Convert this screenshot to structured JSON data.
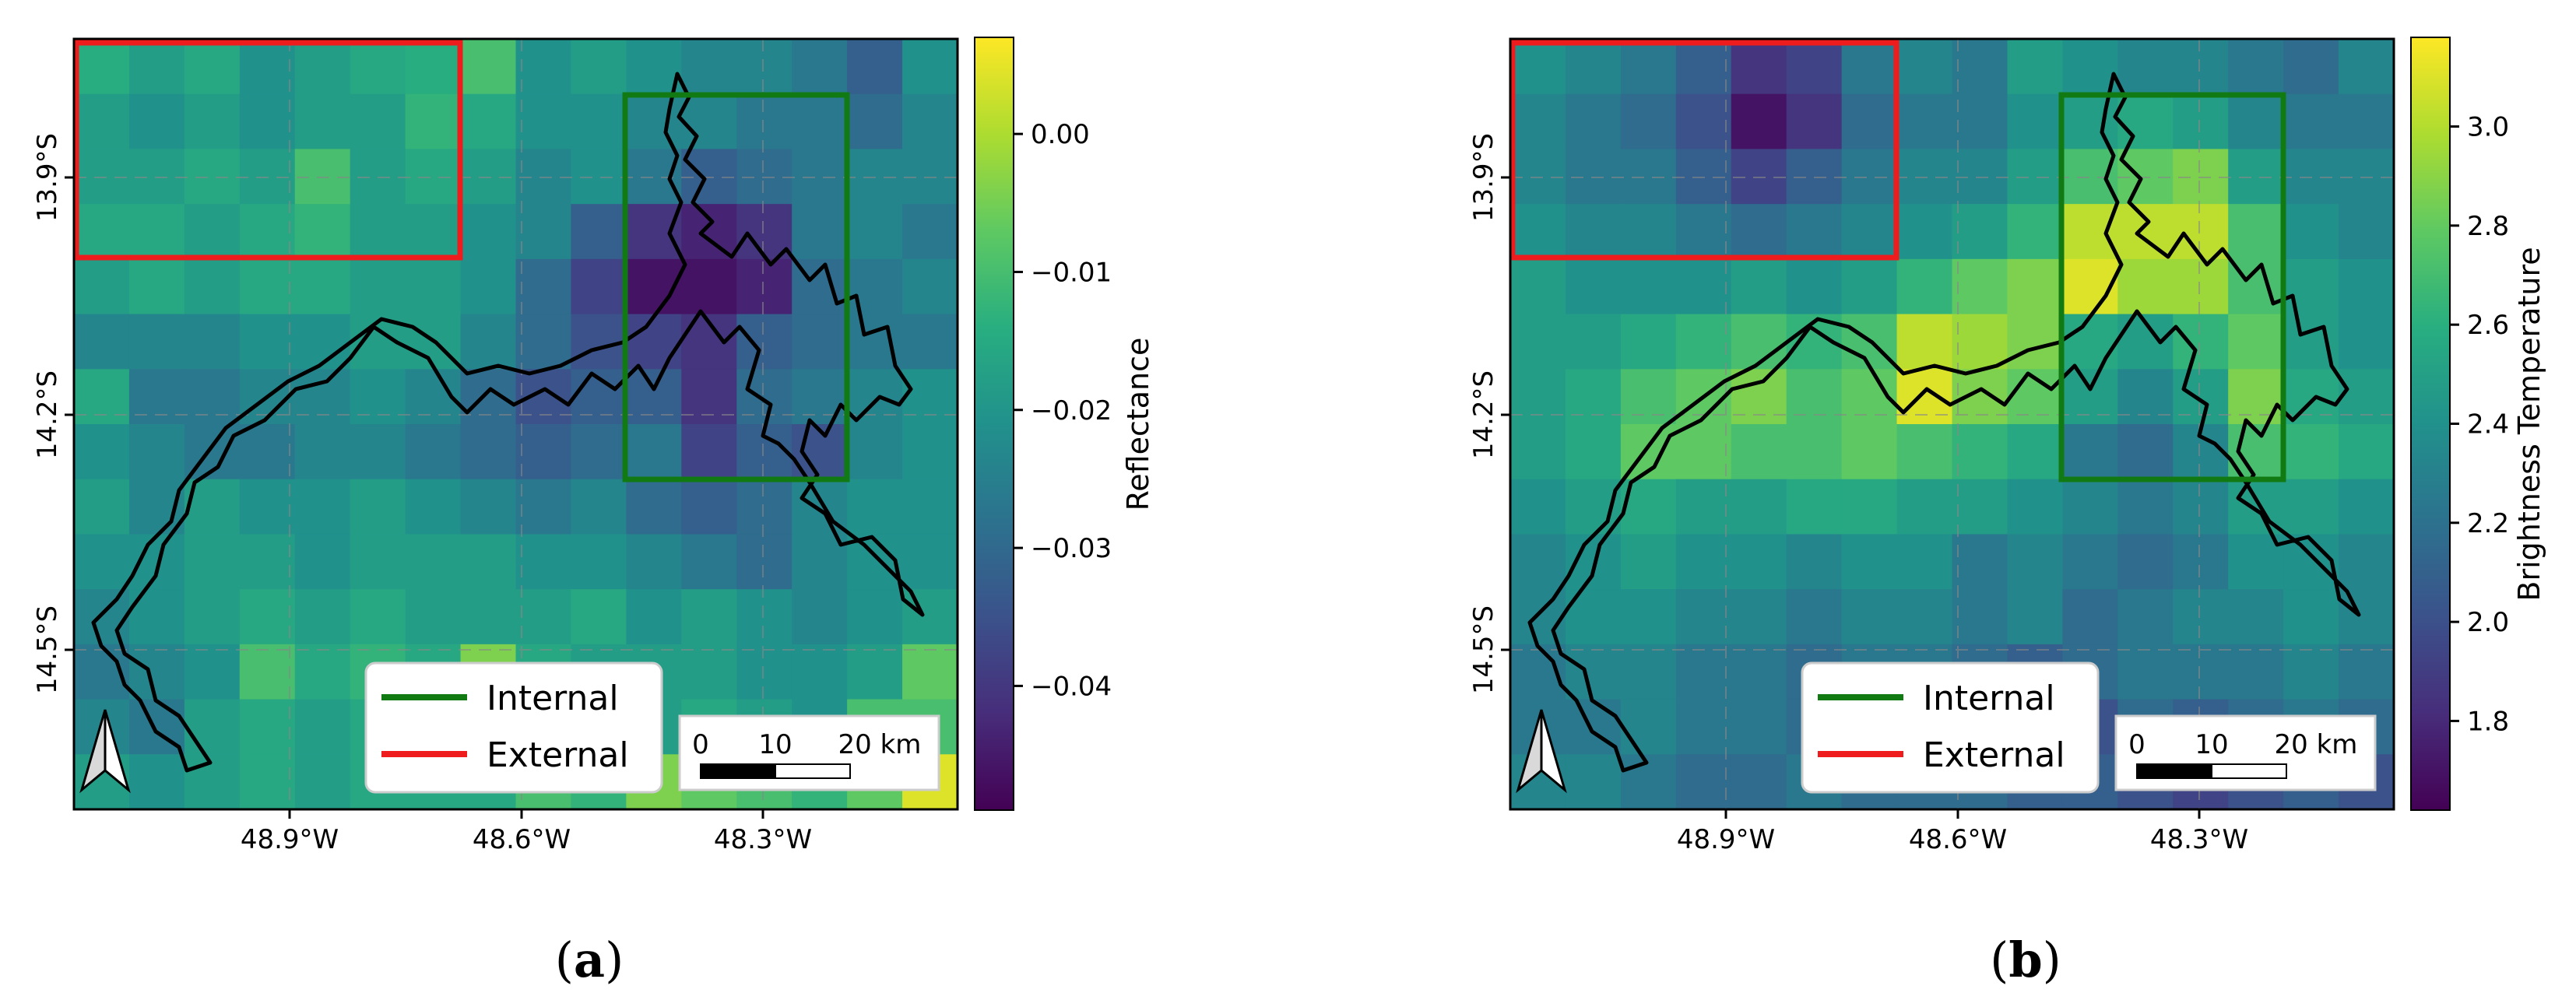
{
  "panels": [
    {
      "id": "a",
      "label_parts": [
        "(",
        "a",
        ")"
      ],
      "lon_ticks": [
        "48.9°W",
        "48.6°W",
        "48.3°W"
      ],
      "lat_ticks": [
        "13.9°S",
        "14.2°S",
        "14.5°S"
      ],
      "legend": {
        "internal": "Internal",
        "external": "External"
      },
      "scalebar": {
        "labels": [
          "0",
          "10",
          "20 km"
        ]
      },
      "colorbar": {
        "title": "Reflectance",
        "range": [
          -0.049,
          0.007
        ],
        "ticks": [
          "0.00",
          "−0.01",
          "−0.02",
          "−0.03",
          "−0.04"
        ],
        "tick_values": [
          0.0,
          -0.01,
          -0.02,
          -0.03,
          -0.04
        ]
      },
      "grid": {
        "rows": 14,
        "cols": 16,
        "values": [
          [
            0.62,
            0.55,
            0.6,
            0.5,
            0.55,
            0.6,
            0.62,
            0.7,
            0.5,
            0.55,
            0.5,
            0.45,
            0.45,
            0.4,
            0.3,
            0.5
          ],
          [
            0.55,
            0.5,
            0.55,
            0.5,
            0.55,
            0.55,
            0.65,
            0.6,
            0.5,
            0.5,
            0.45,
            0.45,
            0.4,
            0.4,
            0.35,
            0.45
          ],
          [
            0.55,
            0.55,
            0.6,
            0.55,
            0.7,
            0.55,
            0.6,
            0.55,
            0.45,
            0.5,
            0.4,
            0.3,
            0.35,
            0.4,
            0.45,
            0.45
          ],
          [
            0.6,
            0.6,
            0.55,
            0.6,
            0.65,
            0.55,
            0.55,
            0.5,
            0.45,
            0.3,
            0.15,
            0.1,
            0.15,
            0.4,
            0.45,
            0.4
          ],
          [
            0.55,
            0.6,
            0.55,
            0.6,
            0.6,
            0.55,
            0.55,
            0.5,
            0.35,
            0.2,
            0.05,
            0.05,
            0.1,
            0.35,
            0.4,
            0.45
          ],
          [
            0.45,
            0.45,
            0.45,
            0.5,
            0.5,
            0.55,
            0.55,
            0.45,
            0.35,
            0.25,
            0.2,
            0.15,
            0.3,
            0.35,
            0.4,
            0.4
          ],
          [
            0.6,
            0.4,
            0.4,
            0.45,
            0.45,
            0.5,
            0.45,
            0.35,
            0.25,
            0.3,
            0.3,
            0.15,
            0.35,
            0.4,
            0.45,
            0.5
          ],
          [
            0.5,
            0.45,
            0.4,
            0.4,
            0.45,
            0.45,
            0.4,
            0.35,
            0.3,
            0.35,
            0.4,
            0.2,
            0.3,
            0.25,
            0.45,
            0.5
          ],
          [
            0.55,
            0.45,
            0.55,
            0.5,
            0.5,
            0.55,
            0.5,
            0.45,
            0.4,
            0.45,
            0.35,
            0.3,
            0.35,
            0.45,
            0.5,
            0.5
          ],
          [
            0.5,
            0.5,
            0.55,
            0.55,
            0.5,
            0.55,
            0.55,
            0.55,
            0.5,
            0.5,
            0.45,
            0.4,
            0.35,
            0.45,
            0.5,
            0.5
          ],
          [
            0.45,
            0.5,
            0.55,
            0.6,
            0.55,
            0.6,
            0.55,
            0.55,
            0.55,
            0.6,
            0.5,
            0.55,
            0.5,
            0.45,
            0.5,
            0.55
          ],
          [
            0.4,
            0.45,
            0.5,
            0.7,
            0.6,
            0.65,
            0.6,
            0.8,
            0.6,
            0.55,
            0.55,
            0.55,
            0.5,
            0.5,
            0.55,
            0.75
          ],
          [
            0.45,
            0.4,
            0.55,
            0.6,
            0.55,
            0.6,
            0.6,
            0.55,
            0.6,
            0.6,
            0.55,
            0.6,
            0.55,
            0.5,
            0.7,
            0.7
          ],
          [
            0.55,
            0.5,
            0.55,
            0.6,
            0.55,
            0.6,
            0.6,
            0.6,
            0.7,
            0.65,
            0.8,
            0.75,
            0.7,
            0.65,
            0.75,
            0.95
          ]
        ]
      }
    },
    {
      "id": "b",
      "label_parts": [
        "(",
        "b",
        ")"
      ],
      "lon_ticks": [
        "48.9°W",
        "48.6°W",
        "48.3°W"
      ],
      "lat_ticks": [
        "13.9°S",
        "14.2°S",
        "14.5°S"
      ],
      "legend": {
        "internal": "Internal",
        "external": "External"
      },
      "scalebar": {
        "labels": [
          "0",
          "10",
          "20 km"
        ]
      },
      "colorbar": {
        "title": "Brightness Temperature",
        "range": [
          1.62,
          3.18
        ],
        "ticks": [
          "3.0",
          "2.8",
          "2.6",
          "2.4",
          "2.2",
          "2.0",
          "1.8"
        ],
        "tick_values": [
          3.0,
          2.8,
          2.6,
          2.4,
          2.2,
          2.0,
          1.8
        ]
      },
      "grid": {
        "rows": 14,
        "cols": 16,
        "values": [
          [
            0.5,
            0.45,
            0.4,
            0.3,
            0.15,
            0.2,
            0.4,
            0.45,
            0.4,
            0.55,
            0.5,
            0.45,
            0.45,
            0.4,
            0.35,
            0.45
          ],
          [
            0.45,
            0.4,
            0.35,
            0.25,
            0.05,
            0.15,
            0.35,
            0.4,
            0.4,
            0.5,
            0.55,
            0.6,
            0.55,
            0.45,
            0.4,
            0.4
          ],
          [
            0.45,
            0.4,
            0.4,
            0.3,
            0.2,
            0.3,
            0.4,
            0.45,
            0.45,
            0.55,
            0.7,
            0.75,
            0.8,
            0.55,
            0.45,
            0.45
          ],
          [
            0.5,
            0.45,
            0.45,
            0.4,
            0.35,
            0.4,
            0.45,
            0.5,
            0.55,
            0.65,
            0.9,
            0.9,
            0.9,
            0.7,
            0.5,
            0.45
          ],
          [
            0.55,
            0.5,
            0.5,
            0.5,
            0.55,
            0.5,
            0.55,
            0.65,
            0.75,
            0.8,
            0.95,
            0.85,
            0.85,
            0.7,
            0.55,
            0.5
          ],
          [
            0.55,
            0.55,
            0.6,
            0.65,
            0.7,
            0.65,
            0.7,
            0.9,
            0.85,
            0.8,
            0.6,
            0.55,
            0.65,
            0.75,
            0.55,
            0.5
          ],
          [
            0.55,
            0.6,
            0.7,
            0.75,
            0.8,
            0.7,
            0.75,
            0.95,
            0.8,
            0.75,
            0.55,
            0.45,
            0.55,
            0.8,
            0.6,
            0.55
          ],
          [
            0.55,
            0.6,
            0.75,
            0.75,
            0.7,
            0.7,
            0.75,
            0.7,
            0.65,
            0.6,
            0.4,
            0.35,
            0.45,
            0.7,
            0.65,
            0.6
          ],
          [
            0.5,
            0.55,
            0.6,
            0.55,
            0.55,
            0.6,
            0.6,
            0.55,
            0.55,
            0.5,
            0.45,
            0.4,
            0.45,
            0.55,
            0.55,
            0.5
          ],
          [
            0.45,
            0.5,
            0.55,
            0.5,
            0.5,
            0.45,
            0.5,
            0.5,
            0.4,
            0.45,
            0.4,
            0.35,
            0.4,
            0.5,
            0.5,
            0.45
          ],
          [
            0.45,
            0.5,
            0.5,
            0.45,
            0.45,
            0.4,
            0.45,
            0.45,
            0.4,
            0.45,
            0.35,
            0.4,
            0.45,
            0.45,
            0.5,
            0.45
          ],
          [
            0.4,
            0.45,
            0.45,
            0.4,
            0.4,
            0.35,
            0.4,
            0.4,
            0.35,
            0.3,
            0.35,
            0.4,
            0.4,
            0.4,
            0.45,
            0.4
          ],
          [
            0.4,
            0.4,
            0.45,
            0.4,
            0.4,
            0.35,
            0.35,
            0.4,
            0.35,
            0.3,
            0.25,
            0.35,
            0.3,
            0.35,
            0.4,
            0.35
          ],
          [
            0.45,
            0.45,
            0.4,
            0.35,
            0.35,
            0.4,
            0.35,
            0.35,
            0.35,
            0.3,
            0.3,
            0.25,
            0.2,
            0.25,
            0.3,
            0.25
          ]
        ]
      }
    }
  ]
}
